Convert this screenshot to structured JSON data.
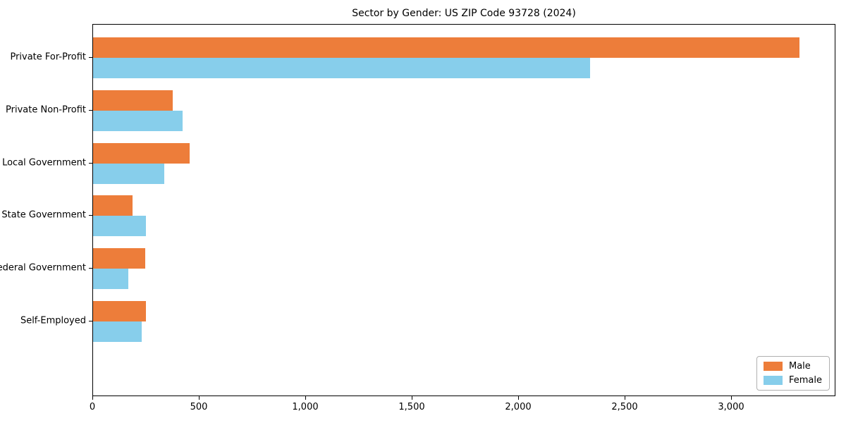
{
  "title": "Sector by Gender: US ZIP Code 93728 (2024)",
  "chart_data": {
    "type": "bar",
    "orientation": "horizontal",
    "title": "Sector by Gender: US ZIP Code 93728 (2024)",
    "xlabel": "",
    "ylabel": "",
    "categories": [
      "Private For-Profit",
      "Private Non-Profit",
      "Local Government",
      "State Government",
      "Federal Government",
      "Self-Employed"
    ],
    "series": [
      {
        "name": "Male",
        "color": "#ED7D3A",
        "values": [
          3325,
          375,
          455,
          185,
          245,
          250
        ]
      },
      {
        "name": "Female",
        "color": "#87CEEB",
        "values": [
          2340,
          420,
          335,
          250,
          165,
          230
        ]
      }
    ],
    "xlim": [
      0,
      3490
    ],
    "x_ticks": [
      0,
      500,
      1000,
      1500,
      2000,
      2500,
      3000
    ],
    "x_tick_labels": [
      "0",
      "500",
      "1,000",
      "1,500",
      "2,000",
      "2,500",
      "3,000"
    ],
    "grid": false,
    "legend_position": "lower right"
  }
}
